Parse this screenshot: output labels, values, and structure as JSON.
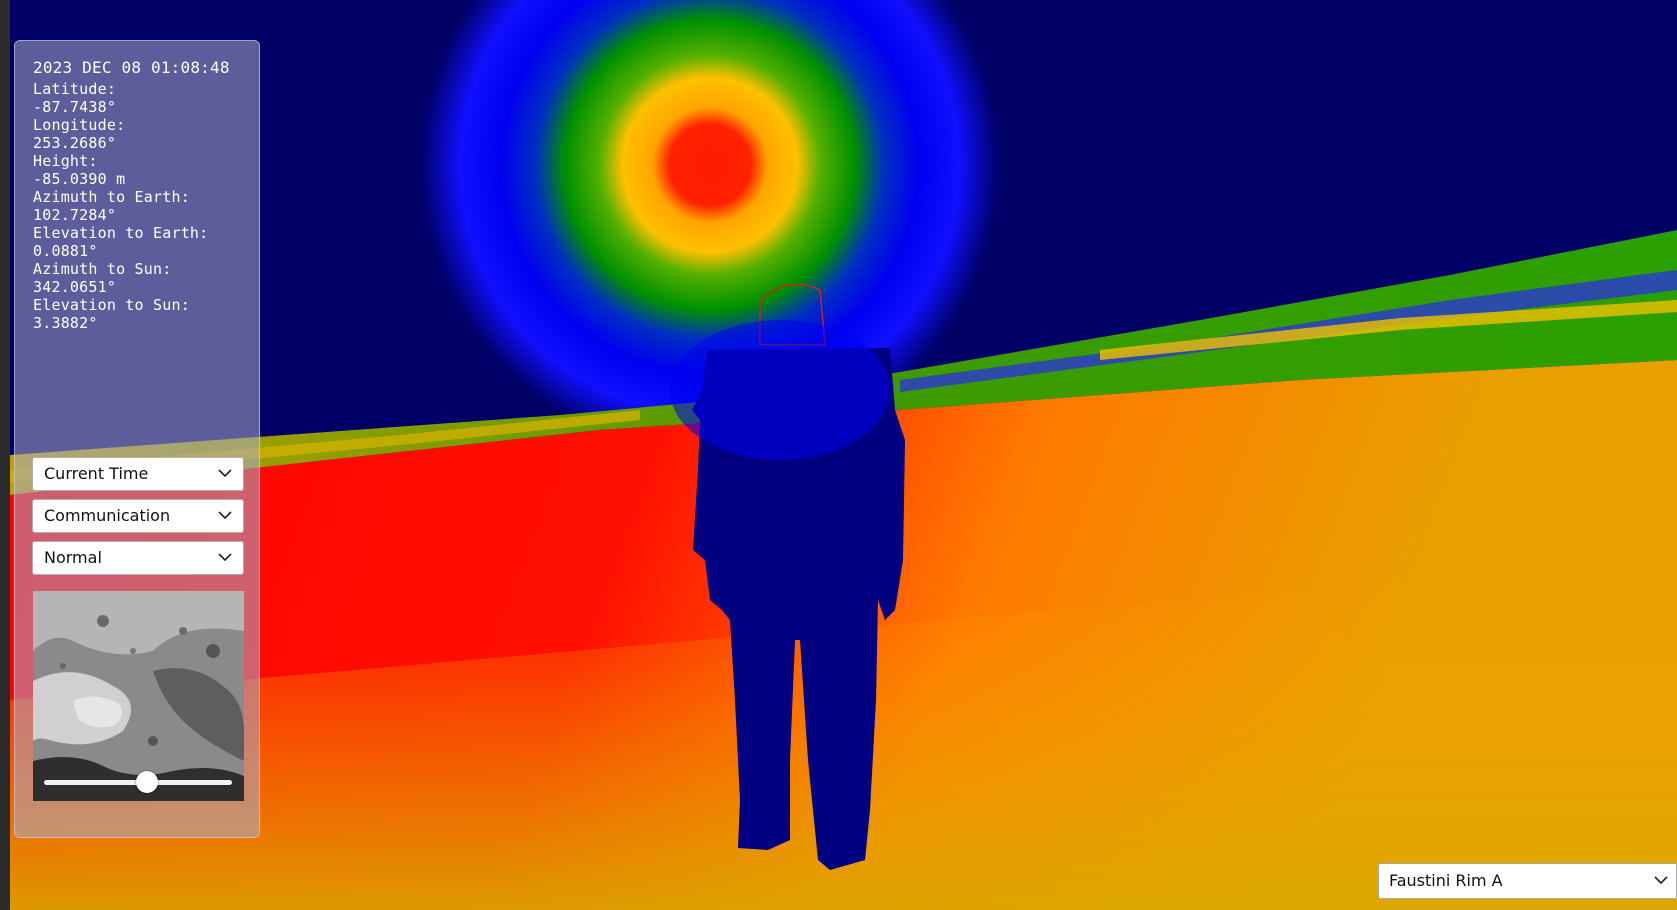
{
  "telemetry": {
    "timestamp": "2023 DEC 08 01:08:48",
    "latitude_label": "Latitude:",
    "latitude_value": "-87.7438°",
    "longitude_label": "Longitude:",
    "longitude_value": "253.2686°",
    "height_label": "Height:",
    "height_value": "-85.0390 m",
    "azimuth_earth_label": "Azimuth to Earth:",
    "azimuth_earth_value": "102.7284°",
    "elevation_earth_label": "Elevation to Earth:",
    "elevation_earth_value": "0.0881°",
    "azimuth_sun_label": "Azimuth to Sun:",
    "azimuth_sun_value": "342.0651°",
    "elevation_sun_label": "Elevation to Sun:",
    "elevation_sun_value": "3.3882°"
  },
  "controls": {
    "time_select": "Current Time",
    "layer_select": "Communication",
    "mode_select": "Normal",
    "minimap_slider_fraction": 0.55
  },
  "location_select": "Faustini Rim A",
  "colors": {
    "sky": "#000066",
    "signal_high": "#ff0000",
    "signal_mid": "#ffb000",
    "signal_mid_low": "#00a000",
    "signal_low": "#0000ff",
    "astronaut": "#000080"
  }
}
